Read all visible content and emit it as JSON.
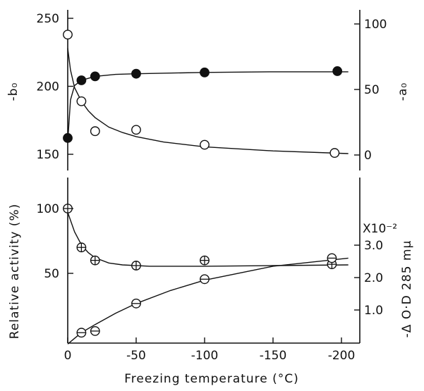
{
  "chart_data": [
    {
      "type": "scatter",
      "panel": "top",
      "xlabel": "Freezing temperature (°C)",
      "x_ticks": [
        "0",
        "-50",
        "-100",
        "-150",
        "-200"
      ],
      "xlim": [
        0,
        -210
      ],
      "ylabel_left": "-b₀",
      "ylim_left": [
        135,
        262
      ],
      "yticks_left": [
        "150",
        "200",
        "250"
      ],
      "ylabel_right": "-a₀",
      "ylim_right": [
        -10,
        105
      ],
      "yticks_right": [
        "0",
        "50",
        "100"
      ],
      "series": [
        {
          "marker": "open-circle",
          "axis": "left",
          "x": [
            0,
            -10,
            -20,
            -50,
            -100,
            -195
          ],
          "y": [
            238,
            189,
            167,
            168,
            157,
            151
          ],
          "curve": [
            [
              0,
              228
            ],
            [
              -2,
              212
            ],
            [
              -5,
              199
            ],
            [
              -10,
              189
            ],
            [
              -15,
              182
            ],
            [
              -20,
              177
            ],
            [
              -30,
              170
            ],
            [
              -40,
              166
            ],
            [
              -50,
              163
            ],
            [
              -70,
              159
            ],
            [
              -100,
              155.5
            ],
            [
              -150,
              152.5
            ],
            [
              -205,
              150.5
            ]
          ]
        },
        {
          "marker": "filled-circle",
          "axis": "right",
          "x": [
            0,
            -10,
            -20,
            -50,
            -100,
            -197
          ],
          "y": [
            13,
            57,
            60,
            62,
            63,
            64
          ],
          "curve": [
            [
              0,
              10
            ],
            [
              -2,
              42
            ],
            [
              -5,
              53
            ],
            [
              -10,
              57
            ],
            [
              -20,
              60
            ],
            [
              -35,
              61.5
            ],
            [
              -50,
              62
            ],
            [
              -100,
              63
            ],
            [
              -150,
              63.5
            ],
            [
              -205,
              63.5
            ]
          ]
        }
      ]
    },
    {
      "type": "scatter",
      "panel": "bottom",
      "xlabel": "Freezing temperature (°C)",
      "x_ticks": [
        "0",
        "-50",
        "-100",
        "-150",
        "-200"
      ],
      "xlim": [
        0,
        -210
      ],
      "ylabel_left": "Relative activity (%)",
      "ylim_left": [
        0,
        115
      ],
      "yticks_left": [
        "100",
        "50"
      ],
      "ylabel_right": "-Δ O·D 285 mμ",
      "right_axis_multiplier": "X10⁻²",
      "ylim_right": [
        0,
        4.1
      ],
      "yticks_right": [
        "3.0",
        "2.0",
        "1.0"
      ],
      "series": [
        {
          "marker": "crossed-circle",
          "axis": "left",
          "x": [
            0,
            -10,
            -20,
            -50,
            -100,
            -193
          ],
          "y": [
            100,
            70,
            60,
            56,
            60,
            57
          ],
          "curve": [
            [
              0,
              97
            ],
            [
              -5,
              82
            ],
            [
              -10,
              72
            ],
            [
              -15,
              66
            ],
            [
              -20,
              62
            ],
            [
              -30,
              58
            ],
            [
              -40,
              56.5
            ],
            [
              -60,
              55.5
            ],
            [
              -100,
              55.5
            ],
            [
              -150,
              56
            ],
            [
              -205,
              56.5
            ]
          ]
        },
        {
          "marker": "minus-circle",
          "axis": "right",
          "x": [
            -10,
            -20,
            -50,
            -100,
            -193
          ],
          "y": [
            0.3,
            0.35,
            1.2,
            1.95,
            2.6
          ],
          "curve": [
            [
              0,
              -0.05
            ],
            [
              -10,
              0.3
            ],
            [
              -20,
              0.55
            ],
            [
              -35,
              0.9
            ],
            [
              -50,
              1.2
            ],
            [
              -75,
              1.6
            ],
            [
              -100,
              1.92
            ],
            [
              -150,
              2.35
            ],
            [
              -205,
              2.6
            ]
          ]
        }
      ]
    }
  ]
}
